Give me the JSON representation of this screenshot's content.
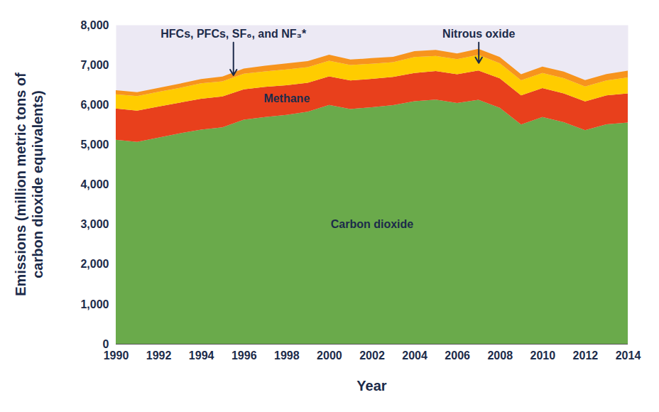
{
  "chart_data": {
    "type": "area",
    "stacked": true,
    "grid": false,
    "x_label": "Year",
    "y_label": "Emissions (million metric tons of\ncarbon dioxide equivalents)",
    "x": [
      1990,
      1991,
      1992,
      1993,
      1994,
      1995,
      1996,
      1997,
      1998,
      1999,
      2000,
      2001,
      2002,
      2003,
      2004,
      2005,
      2006,
      2007,
      2008,
      2009,
      2010,
      2011,
      2012,
      2013,
      2014
    ],
    "series": [
      {
        "name": "Carbon dioxide",
        "color": "#6aaa4b",
        "values": [
          5120,
          5065,
          5170,
          5280,
          5370,
          5430,
          5620,
          5690,
          5740,
          5820,
          5990,
          5890,
          5935,
          5985,
          6085,
          6125,
          6040,
          6120,
          5920,
          5500,
          5690,
          5560,
          5360,
          5505,
          5550
        ]
      },
      {
        "name": "Methane",
        "color": "#e8401c",
        "values": [
          780,
          785,
          780,
          770,
          775,
          775,
          765,
          755,
          745,
          730,
          720,
          715,
          710,
          710,
          710,
          715,
          720,
          735,
          740,
          730,
          725,
          720,
          720,
          725,
          730
        ]
      },
      {
        "name": "Nitrous oxide",
        "color": "#ffcc00",
        "values": [
          360,
          365,
          370,
          370,
          390,
          380,
          390,
          390,
          395,
          390,
          390,
          390,
          380,
          370,
          400,
          380,
          380,
          390,
          380,
          380,
          380,
          385,
          375,
          375,
          400
        ]
      },
      {
        "name": "HFCs, PFCs, SF₆, and NF₃*",
        "color": "#f7941d",
        "values": [
          100,
          95,
          100,
          105,
          105,
          120,
          130,
          140,
          155,
          150,
          150,
          135,
          140,
          135,
          145,
          150,
          145,
          155,
          155,
          150,
          160,
          165,
          160,
          160,
          170
        ]
      }
    ],
    "xlim": [
      1990,
      2014
    ],
    "xticks": [
      1990,
      1992,
      1994,
      1996,
      1998,
      2000,
      2002,
      2004,
      2006,
      2008,
      2010,
      2012,
      2014
    ],
    "ylim": [
      0,
      8000
    ],
    "yticks": [
      0,
      {
        "value": 1000,
        "label": "1,000"
      },
      {
        "value": 2000,
        "label": "2,000"
      },
      {
        "value": 3000,
        "label": "3,000"
      },
      {
        "value": 4000,
        "label": "4,000"
      },
      {
        "value": 5000,
        "label": "5,000"
      },
      {
        "value": 6000,
        "label": "6,000"
      },
      {
        "value": 7000,
        "label": "7,000"
      },
      {
        "value": 8000,
        "label": "8,000"
      }
    ],
    "annotations": [
      {
        "text": "Carbon dioxide",
        "x": 2002,
        "y": 3000
      },
      {
        "text": "Methane",
        "x": 1998,
        "y": 6150
      },
      {
        "text": "HFCs, PFCs, SF₆, and NF₃*",
        "x": 1995.5,
        "y": 7780,
        "series": "HFCs, PFCs, SF₆, and NF₃*"
      },
      {
        "text": "Nitrous oxide",
        "x": 2007,
        "y": 7780,
        "series": "Nitrous oxide"
      }
    ]
  }
}
